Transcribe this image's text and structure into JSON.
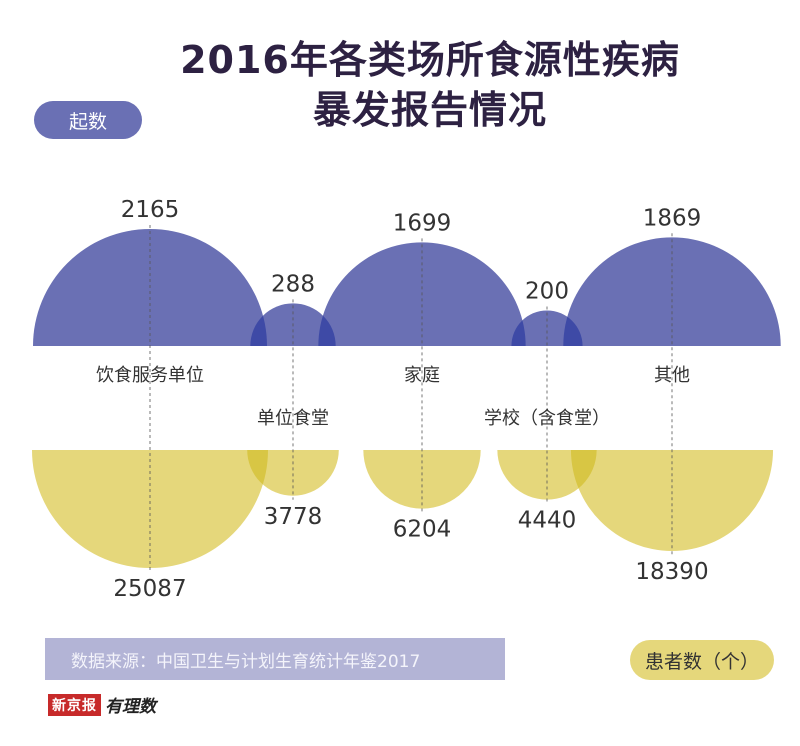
{
  "title_line1": "2016年各类场所食源性疾病",
  "title_line2": "暴发报告情况",
  "legend_top": "起数",
  "legend_bottom": "患者数（个）",
  "source": "数据来源：中国卫生与计划生育统计年鉴2017",
  "logo_text_a": "新京报",
  "logo_text_b": "有理数",
  "colors": {
    "top": "#6a70b4",
    "overlap": "#3e4aa6",
    "bottom": "#e5d77b",
    "bottom_overlap": "#d8c644"
  },
  "chart_data": {
    "type": "bubble",
    "title": "2016年各类场所食源性疾病暴发报告情况",
    "categories": [
      "饮食服务单位",
      "单位食堂",
      "家庭",
      "学校（含食堂）",
      "其他"
    ],
    "series": [
      {
        "name": "起数",
        "values": [
          2165,
          288,
          1699,
          200,
          1869
        ]
      },
      {
        "name": "患者数（个）",
        "values": [
          25087,
          3778,
          6204,
          4440,
          18390
        ]
      }
    ]
  }
}
